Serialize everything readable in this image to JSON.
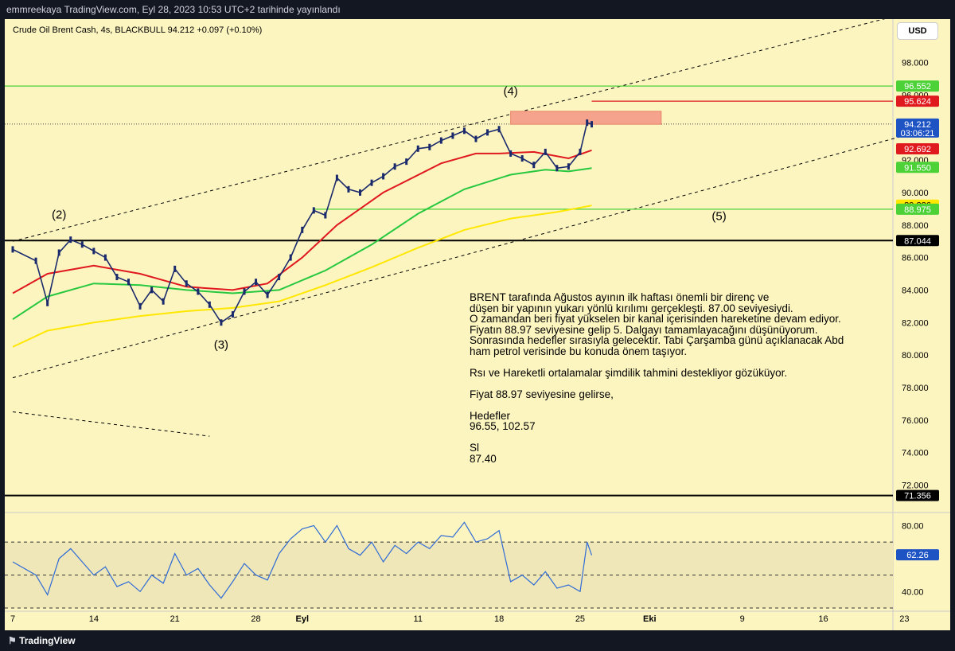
{
  "header": {
    "publisher": "emmreekaya TradingView.com, Eyl 28, 2023 10:53 UTC+2 tarihinde yayınlandı"
  },
  "legend": {
    "text": "Crude Oil Brent Cash, 4s, BLACKBULL  94.212  +0.097 (+0.10%)"
  },
  "currency": "USD",
  "footer": {
    "brand": "TradingView"
  },
  "colors": {
    "background": "#fdf5c0",
    "ema_red": "#e0191f",
    "ema_green": "#27c83f",
    "ema_yellow": "#ffe700",
    "rsi_line": "#2f6bd6",
    "support": "#000000",
    "green_level": "#4cd137",
    "zone": "#f5a38c"
  },
  "chart_data": [
    {
      "type": "line",
      "title": "Crude Oil Brent Cash, 4s, BLACKBULL",
      "ylim": [
        70.6,
        99.4
      ],
      "y_ticks": [
        72,
        74,
        76,
        78,
        80,
        82,
        84,
        86,
        88,
        90,
        92,
        94,
        96,
        98
      ],
      "y_tick_labels": [
        "72.000",
        "74.000",
        "76.000",
        "78.000",
        "80.000",
        "82.000",
        "84.000",
        "86.000",
        "88.000",
        "90.000",
        "92.000",
        "94.000",
        "96.000",
        "98.000"
      ],
      "x_ticks": [
        {
          "label": "7",
          "day": 7
        },
        {
          "label": "14",
          "day": 14
        },
        {
          "label": "21",
          "day": 21
        },
        {
          "label": "28",
          "day": 28
        },
        {
          "label": "Eyl",
          "day": 32
        },
        {
          "label": "11",
          "day": 42
        },
        {
          "label": "18",
          "day": 49
        },
        {
          "label": "25",
          "day": 56
        },
        {
          "label": "Eki",
          "day": 62
        },
        {
          "label": "9",
          "day": 70
        },
        {
          "label": "16",
          "day": 77
        },
        {
          "label": "23",
          "day": 84
        }
      ],
      "series": [
        {
          "name": "price",
          "values": [
            [
              7,
              86.5
            ],
            [
              9,
              85.8
            ],
            [
              10,
              83.2
            ],
            [
              11,
              86.3
            ],
            [
              12,
              87.1
            ],
            [
              13,
              86.8
            ],
            [
              14,
              86.4
            ],
            [
              15,
              86.0
            ],
            [
              16,
              84.8
            ],
            [
              17,
              84.5
            ],
            [
              18,
              83.0
            ],
            [
              19,
              84.0
            ],
            [
              20,
              83.3
            ],
            [
              21,
              85.3
            ],
            [
              22,
              84.4
            ],
            [
              23,
              83.9
            ],
            [
              24,
              83.1
            ],
            [
              25,
              82.0
            ],
            [
              26,
              82.5
            ],
            [
              27,
              83.9
            ],
            [
              28,
              84.5
            ],
            [
              29,
              83.7
            ],
            [
              30,
              84.8
            ],
            [
              31,
              86.0
            ],
            [
              32,
              87.7
            ],
            [
              33,
              88.9
            ],
            [
              34,
              88.6
            ],
            [
              35,
              90.9
            ],
            [
              36,
              90.2
            ],
            [
              37,
              90.0
            ],
            [
              38,
              90.6
            ],
            [
              39,
              91.0
            ],
            [
              40,
              91.6
            ],
            [
              41,
              91.9
            ],
            [
              42,
              92.7
            ],
            [
              43,
              92.8
            ],
            [
              44,
              93.2
            ],
            [
              45,
              93.5
            ],
            [
              46,
              93.8
            ],
            [
              47,
              93.3
            ],
            [
              48,
              93.7
            ],
            [
              49,
              93.9
            ],
            [
              50,
              92.4
            ],
            [
              51,
              92.1
            ],
            [
              52,
              91.7
            ],
            [
              53,
              92.5
            ],
            [
              54,
              91.5
            ],
            [
              55,
              91.6
            ],
            [
              56,
              92.5
            ],
            [
              56.6,
              94.3
            ],
            [
              57,
              94.2
            ]
          ]
        },
        {
          "name": "EMA red",
          "values": [
            [
              7,
              83.8
            ],
            [
              10,
              85.0
            ],
            [
              14,
              85.5
            ],
            [
              18,
              85.0
            ],
            [
              22,
              84.2
            ],
            [
              26,
              84.0
            ],
            [
              29,
              84.4
            ],
            [
              32,
              86.0
            ],
            [
              35,
              88.0
            ],
            [
              39,
              90.0
            ],
            [
              44,
              91.8
            ],
            [
              47,
              92.4
            ],
            [
              49,
              92.4
            ],
            [
              52,
              92.5
            ],
            [
              55,
              92.1
            ],
            [
              57,
              92.6
            ]
          ]
        },
        {
          "name": "EMA green",
          "values": [
            [
              7,
              82.2
            ],
            [
              10,
              83.6
            ],
            [
              14,
              84.4
            ],
            [
              18,
              84.3
            ],
            [
              22,
              84.0
            ],
            [
              26,
              83.8
            ],
            [
              30,
              84.0
            ],
            [
              34,
              85.2
            ],
            [
              38,
              86.8
            ],
            [
              42,
              88.7
            ],
            [
              46,
              90.2
            ],
            [
              50,
              91.1
            ],
            [
              53,
              91.4
            ],
            [
              55,
              91.3
            ],
            [
              57,
              91.5
            ]
          ]
        },
        {
          "name": "EMA yellow",
          "values": [
            [
              7,
              80.5
            ],
            [
              10,
              81.5
            ],
            [
              14,
              82.0
            ],
            [
              18,
              82.4
            ],
            [
              22,
              82.7
            ],
            [
              26,
              82.9
            ],
            [
              30,
              83.3
            ],
            [
              34,
              84.3
            ],
            [
              38,
              85.4
            ],
            [
              42,
              86.6
            ],
            [
              46,
              87.7
            ],
            [
              50,
              88.4
            ],
            [
              54,
              88.8
            ],
            [
              57,
              89.2
            ]
          ]
        }
      ],
      "price_labels": [
        {
          "value": 96.552,
          "label": "96.552",
          "color": "#4cd137"
        },
        {
          "value": 95.624,
          "label": "95.624",
          "color": "#e0191f"
        },
        {
          "value": 94.212,
          "label": "94.212",
          "sub": "03:06:21",
          "color": "#1e53c4"
        },
        {
          "value": 92.692,
          "label": "92.692",
          "color": "#e0191f"
        },
        {
          "value": 91.55,
          "label": "91.550",
          "color": "#4cd137"
        },
        {
          "value": 89.226,
          "label": "89.226",
          "color": "#ffe700"
        },
        {
          "value": 88.975,
          "label": "88.975",
          "color": "#4cd137"
        },
        {
          "value": 87.044,
          "label": "87.044",
          "color": "#000000"
        },
        {
          "value": 71.356,
          "label": "71.356",
          "color": "#000000"
        }
      ],
      "horizontal_levels": [
        96.552,
        87.044,
        71.356,
        88.975
      ],
      "resistance_zone": {
        "from_day": 50,
        "to_day": 63,
        "low": 94.2,
        "high": 95.0
      },
      "red_line": {
        "from_day": 57,
        "to_day": 84,
        "value": 95.624
      },
      "wave_labels": [
        {
          "label": "(2)",
          "day": 11,
          "value": 88.4
        },
        {
          "label": "(4)",
          "day": 50,
          "value": 96.0
        },
        {
          "label": "(3)",
          "day": 25,
          "value": 80.4
        },
        {
          "label": "(5)",
          "day": 68,
          "value": 88.3
        }
      ],
      "channel_upper": [
        [
          7,
          87.0
        ],
        [
          84,
          101.0
        ]
      ],
      "channel_lower": [
        [
          7,
          78.6
        ],
        [
          84,
          93.5
        ]
      ],
      "dashed_short": [
        [
          7,
          76.5
        ],
        [
          24,
          75.0
        ]
      ],
      "dotted_price": 94.212
    },
    {
      "type": "line",
      "title": "RSI",
      "ylim": [
        30,
        86
      ],
      "y_ticks": [
        40,
        60,
        80
      ],
      "y_tick_labels": [
        "40.00",
        "",
        "80.00"
      ],
      "levels": [
        70,
        50,
        30
      ],
      "series": [
        {
          "name": "RSI",
          "values": [
            [
              7,
              58
            ],
            [
              9,
              50
            ],
            [
              10,
              38
            ],
            [
              11,
              60
            ],
            [
              12,
              66
            ],
            [
              13,
              58
            ],
            [
              14,
              50
            ],
            [
              15,
              55
            ],
            [
              16,
              43
            ],
            [
              17,
              46
            ],
            [
              18,
              40
            ],
            [
              19,
              50
            ],
            [
              20,
              45
            ],
            [
              21,
              63
            ],
            [
              22,
              50
            ],
            [
              23,
              54
            ],
            [
              24,
              44
            ],
            [
              25,
              36
            ],
            [
              26,
              46
            ],
            [
              27,
              57
            ],
            [
              28,
              50
            ],
            [
              29,
              47
            ],
            [
              30,
              63
            ],
            [
              31,
              72
            ],
            [
              32,
              78
            ],
            [
              33,
              80
            ],
            [
              34,
              70
            ],
            [
              35,
              80
            ],
            [
              36,
              66
            ],
            [
              37,
              62
            ],
            [
              38,
              70
            ],
            [
              39,
              58
            ],
            [
              40,
              68
            ],
            [
              41,
              63
            ],
            [
              42,
              70
            ],
            [
              43,
              66
            ],
            [
              44,
              74
            ],
            [
              45,
              73
            ],
            [
              46,
              82
            ],
            [
              47,
              70
            ],
            [
              48,
              72
            ],
            [
              49,
              77
            ],
            [
              50,
              46
            ],
            [
              51,
              50
            ],
            [
              52,
              44
            ],
            [
              53,
              52
            ],
            [
              54,
              42
            ],
            [
              55,
              44
            ],
            [
              56,
              40
            ],
            [
              56.6,
              70
            ],
            [
              57,
              62
            ]
          ]
        }
      ],
      "last_label": {
        "value": 62.26,
        "label": "62.26",
        "color": "#1e53c4"
      }
    }
  ],
  "note": {
    "text": "BRENT tarafında Ağustos ayının ilk haftası önemli bir direnç ve\ndüşen bir yapının yukarı yönlü kırılımı gerçekleşti. 87.00 seviyesiydi.\nO zamandan beri fiyat yükselen bir kanal içerisinden hareketine devam ediyor.\nFiyatın 88.97 seviyesine gelip 5. Dalgayı tamamlayacağını düşünüyorum.\nSonrasında hedefler sırasıyla gelecektir. Tabi Çarşamba günü açıklanacak Abd\nham petrol verisinde bu konuda önem taşıyor.\n\nRsı ve Hareketli ortalamalar şimdilik tahmini destekliyor gözüküyor.\n\nFiyat 88.97 seviyesine gelirse,\n\nHedefler\n96.55, 102.57\n\nSl\n87.40"
  }
}
